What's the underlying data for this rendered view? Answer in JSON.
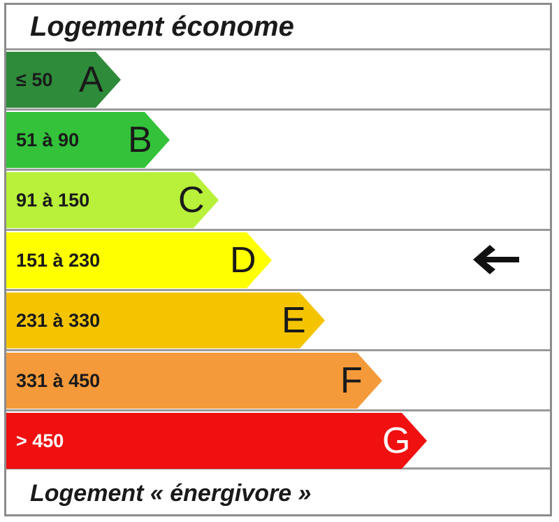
{
  "title": "Logement économe",
  "footer": "Logement « énergivore »",
  "classes": [
    {
      "letter": "A",
      "range": "≤ 50",
      "color": "#2e8b3a"
    },
    {
      "letter": "B",
      "range": "51 à 90",
      "color": "#33c23a"
    },
    {
      "letter": "C",
      "range": "91 à 150",
      "color": "#b8f03a"
    },
    {
      "letter": "D",
      "range": "151 à 230",
      "color": "#ffff00"
    },
    {
      "letter": "E",
      "range": "231 à 330",
      "color": "#f5c400"
    },
    {
      "letter": "F",
      "range": "331 à 450",
      "color": "#f59a3a"
    },
    {
      "letter": "G",
      "range": "> 450",
      "color": "#f01010"
    }
  ],
  "current_class": "D",
  "marker_icon": "arrow-left-icon"
}
